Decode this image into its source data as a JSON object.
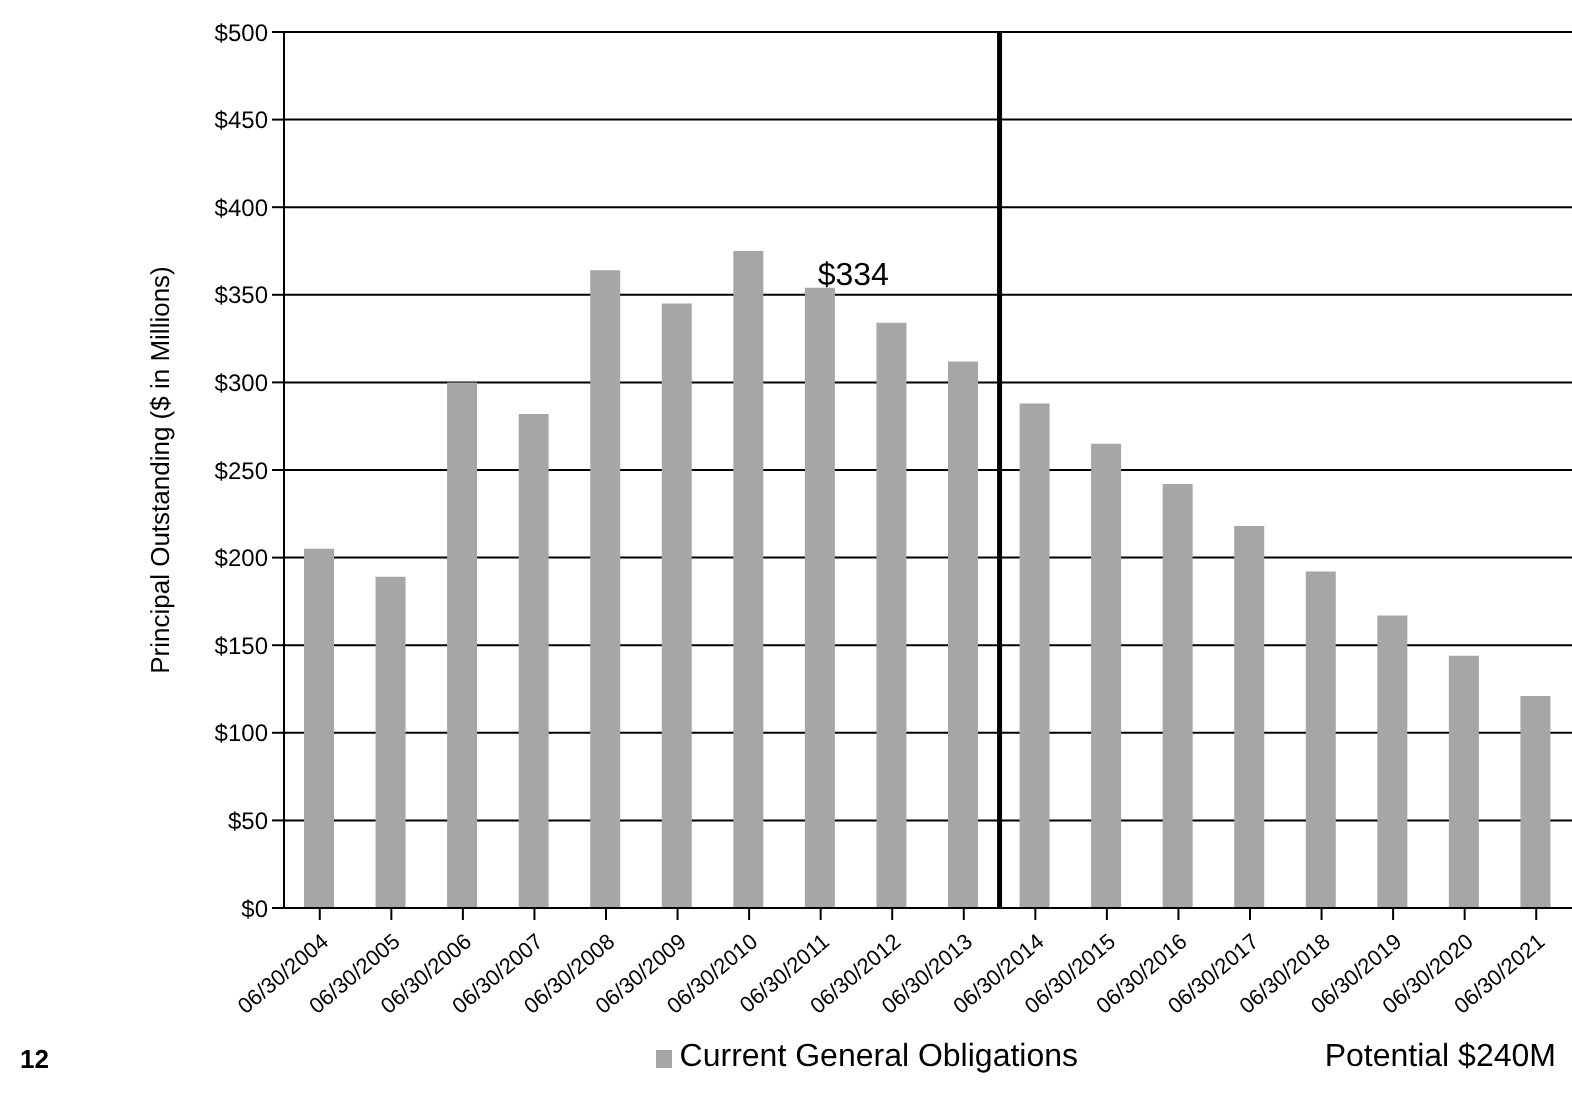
{
  "chart_data": {
    "type": "bar",
    "ylabel": "Principal Outstanding ($ in Millions)",
    "categories": [
      "06/30/2004",
      "06/30/2005",
      "06/30/2006",
      "06/30/2007",
      "06/30/2008",
      "06/30/2009",
      "06/30/2010",
      "06/30/2011",
      "06/30/2012",
      "06/30/2013",
      "06/30/2014",
      "06/30/2015",
      "06/30/2016",
      "06/30/2017",
      "06/30/2018",
      "06/30/2019",
      "06/30/2020",
      "06/30/2021"
    ],
    "series": [
      {
        "name": "Current General Obligations",
        "color": "#a6a6a6",
        "values": [
          205,
          189,
          300,
          282,
          364,
          345,
          375,
          354,
          334,
          312,
          288,
          265,
          242,
          218,
          192,
          167,
          144,
          121
        ]
      }
    ],
    "ylim": [
      0,
      500
    ],
    "yticks": [
      {
        "value": 0,
        "label": "$0"
      },
      {
        "value": 50,
        "label": "$50"
      },
      {
        "value": 100,
        "label": "$100"
      },
      {
        "value": 150,
        "label": "$150"
      },
      {
        "value": 200,
        "label": "$200"
      },
      {
        "value": 250,
        "label": "$250"
      },
      {
        "value": 300,
        "label": "$300"
      },
      {
        "value": 350,
        "label": "$350"
      },
      {
        "value": 400,
        "label": "$400"
      },
      {
        "value": 450,
        "label": "$450"
      },
      {
        "value": 500,
        "label": "$500"
      }
    ],
    "grid": "y",
    "legend": "bottom",
    "ref_lines": [
      {
        "axis": "x",
        "value": "06/30/2014",
        "color": "#000000"
      }
    ],
    "annotations": [
      {
        "text": "$334",
        "x": "06/30/2012",
        "y": 334
      },
      "12",
      "Potential $240M"
    ]
  }
}
